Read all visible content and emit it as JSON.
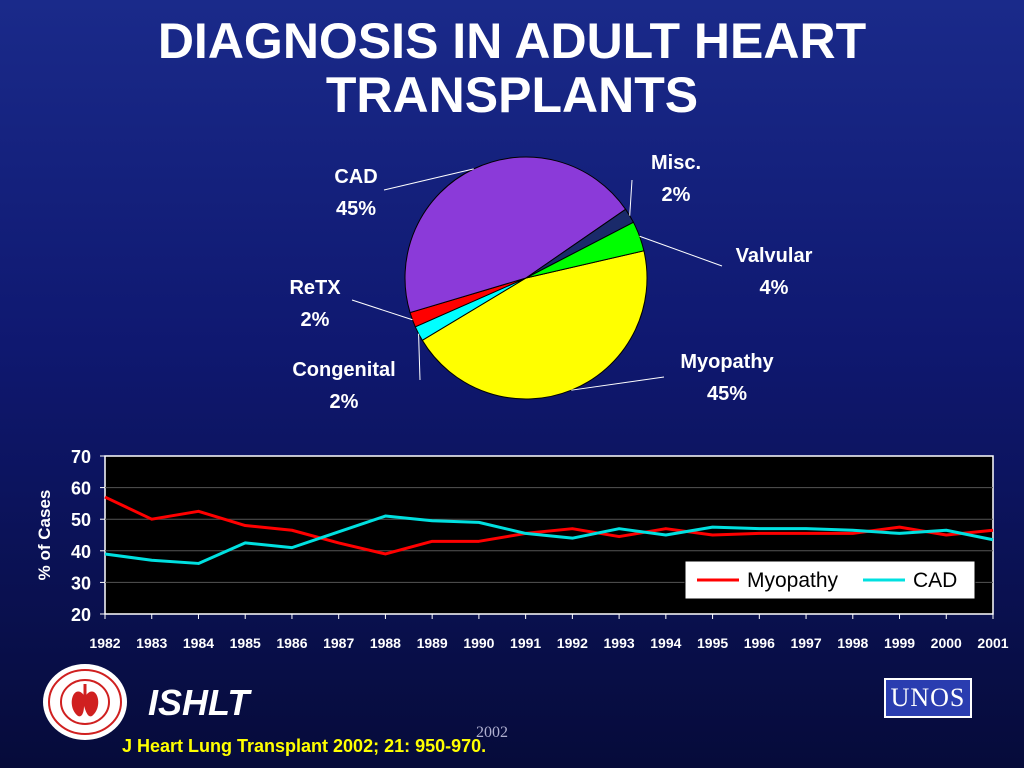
{
  "title_lines": [
    "DIAGNOSIS IN ADULT HEART",
    "TRANSPLANTS"
  ],
  "chart_data": [
    {
      "type": "pie",
      "slices": [
        {
          "label": "Myopathy",
          "value": 45,
          "display": "45%",
          "color": "#ffff00"
        },
        {
          "label": "Congenital",
          "value": 2,
          "display": "2%",
          "color": "#00ffff"
        },
        {
          "label": "ReTX",
          "value": 2,
          "display": "2%",
          "color": "#ff0000"
        },
        {
          "label": "CAD",
          "value": 45,
          "display": "45%",
          "color": "#8b3ad9"
        },
        {
          "label": "Misc.",
          "value": 2,
          "display": "2%",
          "color": "#1a2a6a"
        },
        {
          "label": "Valvular",
          "value": 4,
          "display": "4%",
          "color": "#00ff00"
        }
      ]
    },
    {
      "type": "line",
      "x": [
        "1982",
        "1983",
        "1984",
        "1985",
        "1986",
        "1987",
        "1988",
        "1989",
        "1990",
        "1991",
        "1992",
        "1993",
        "1994",
        "1995",
        "1996",
        "1997",
        "1998",
        "1999",
        "2000",
        "2001"
      ],
      "ylabel": "% of Cases",
      "ylim": [
        20,
        70
      ],
      "yticks": [
        20,
        30,
        40,
        50,
        60,
        70
      ],
      "grid": true,
      "legend": "bottom-right",
      "series": [
        {
          "name": "Myopathy",
          "color": "#ff0000",
          "values": [
            57,
            50,
            52.5,
            48,
            46.5,
            42.5,
            39,
            43,
            43,
            45.5,
            47,
            44.5,
            47,
            45,
            45.5,
            45.5,
            45.5,
            47.5,
            45,
            46.5
          ]
        },
        {
          "name": "CAD",
          "color": "#00e0e0",
          "values": [
            39,
            37,
            36,
            42.5,
            41,
            46,
            51,
            49.5,
            49,
            45.5,
            44,
            47,
            45,
            47.5,
            47,
            47,
            46.5,
            45.5,
            46.5,
            43.5
          ]
        }
      ]
    }
  ],
  "footer": {
    "org": "ISHLT",
    "citation": "J Heart Lung Transplant 2002; 21: 950-970.",
    "year_note": "2002",
    "unos_logo": "UNOS",
    "seal_icon": "ishlt-seal-icon"
  }
}
